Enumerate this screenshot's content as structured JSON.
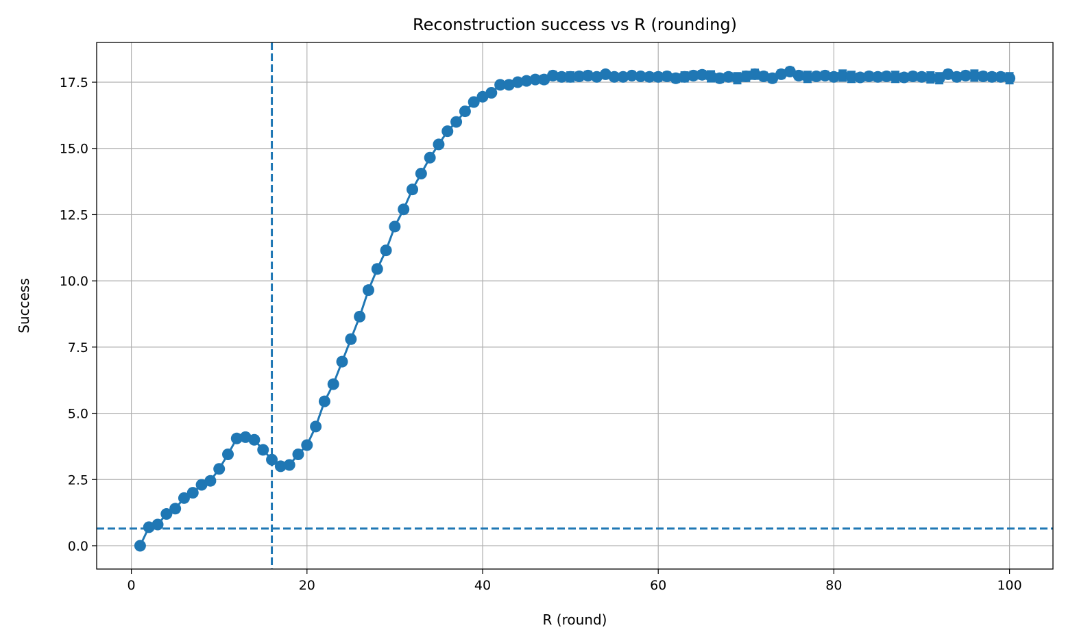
{
  "chart_data": {
    "type": "line",
    "title": "Reconstruction success vs R (rounding)",
    "xlabel": "R (round)",
    "ylabel": "Success",
    "xlim": [
      -3.95,
      104.95
    ],
    "ylim": [
      -0.88,
      19.0
    ],
    "xticks": [
      0,
      20,
      40,
      60,
      80,
      100
    ],
    "xtick_labels": [
      "0",
      "20",
      "40",
      "60",
      "80",
      "100"
    ],
    "yticks": [
      0.0,
      2.5,
      5.0,
      7.5,
      10.0,
      12.5,
      15.0,
      17.5
    ],
    "ytick_labels": [
      "0.0",
      "2.5",
      "5.0",
      "7.5",
      "10.0",
      "12.5",
      "15.0",
      "17.5"
    ],
    "grid": true,
    "color": "#1f77b4",
    "reference_lines": [
      {
        "orientation": "vertical",
        "value": 16,
        "style": "dashed"
      },
      {
        "orientation": "horizontal",
        "value": 0.65,
        "style": "dashed"
      }
    ],
    "series": [
      {
        "x": [
          1,
          2,
          3,
          4,
          5,
          6,
          7,
          8,
          9,
          10,
          11,
          12,
          13,
          14,
          15,
          16,
          17,
          18,
          19,
          20,
          21,
          22,
          23,
          24,
          25,
          26,
          27,
          28,
          29,
          30,
          31,
          32,
          33,
          34,
          35,
          36,
          37,
          38,
          39,
          40,
          41,
          42,
          43,
          44,
          45,
          46,
          47,
          48,
          49,
          50,
          51,
          52,
          53,
          54,
          55,
          56,
          57,
          58,
          59,
          60,
          61,
          62,
          63,
          64,
          65,
          66,
          67,
          68,
          69,
          70,
          71,
          72,
          73,
          74,
          75,
          76,
          77,
          78,
          79,
          80,
          81,
          82,
          83,
          84,
          85,
          86,
          87,
          88,
          89,
          90,
          91,
          92,
          93,
          94,
          95,
          96,
          97,
          98,
          99,
          100
        ],
        "y": [
          0.0,
          0.7,
          0.8,
          1.2,
          1.4,
          1.8,
          2.0,
          2.3,
          2.45,
          2.9,
          3.45,
          4.05,
          4.1,
          4.0,
          3.62,
          3.25,
          3.0,
          3.05,
          3.45,
          3.8,
          4.5,
          5.45,
          6.1,
          6.95,
          7.8,
          8.65,
          9.65,
          10.45,
          11.15,
          12.05,
          12.7,
          13.45,
          14.05,
          14.65,
          15.15,
          15.65,
          16.0,
          16.4,
          16.75,
          16.95,
          17.1,
          17.4,
          17.4,
          17.5,
          17.55,
          17.6,
          17.6,
          17.75,
          17.7,
          17.7,
          17.72,
          17.75,
          17.7,
          17.8,
          17.7,
          17.7,
          17.75,
          17.72,
          17.7,
          17.7,
          17.72,
          17.65,
          17.7,
          17.75,
          17.78,
          17.72,
          17.65,
          17.7,
          17.65,
          17.72,
          17.8,
          17.72,
          17.65,
          17.8,
          17.9,
          17.75,
          17.7,
          17.72,
          17.75,
          17.7,
          17.75,
          17.7,
          17.68,
          17.72,
          17.7,
          17.72,
          17.7,
          17.68,
          17.72,
          17.7,
          17.68,
          17.65,
          17.8,
          17.7,
          17.75,
          17.75,
          17.72,
          17.7,
          17.7,
          17.65
        ],
        "err": [
          0.0,
          0.03,
          0.03,
          0.04,
          0.04,
          0.04,
          0.05,
          0.05,
          0.05,
          0.06,
          0.06,
          0.06,
          0.06,
          0.06,
          0.06,
          0.06,
          0.06,
          0.06,
          0.06,
          0.08,
          0.1,
          0.1,
          0.12,
          0.14,
          0.14,
          0.14,
          0.14,
          0.14,
          0.12,
          0.12,
          0.12,
          0.1,
          0.1,
          0.1,
          0.08,
          0.08,
          0.08,
          0.08,
          0.08,
          0.08,
          0.08,
          0.08,
          0.1,
          0.1,
          0.12,
          0.12,
          0.15,
          0.15,
          0.15,
          0.18,
          0.15,
          0.15,
          0.12,
          0.12,
          0.12,
          0.12,
          0.12,
          0.12,
          0.15,
          0.15,
          0.15,
          0.15,
          0.18,
          0.15,
          0.15,
          0.2,
          0.15,
          0.15,
          0.2,
          0.18,
          0.18,
          0.15,
          0.15,
          0.15,
          0.15,
          0.15,
          0.2,
          0.15,
          0.15,
          0.15,
          0.2,
          0.2,
          0.15,
          0.15,
          0.15,
          0.15,
          0.2,
          0.15,
          0.15,
          0.15,
          0.2,
          0.2,
          0.15,
          0.15,
          0.15,
          0.2,
          0.15,
          0.15,
          0.15,
          0.2
        ]
      }
    ]
  }
}
